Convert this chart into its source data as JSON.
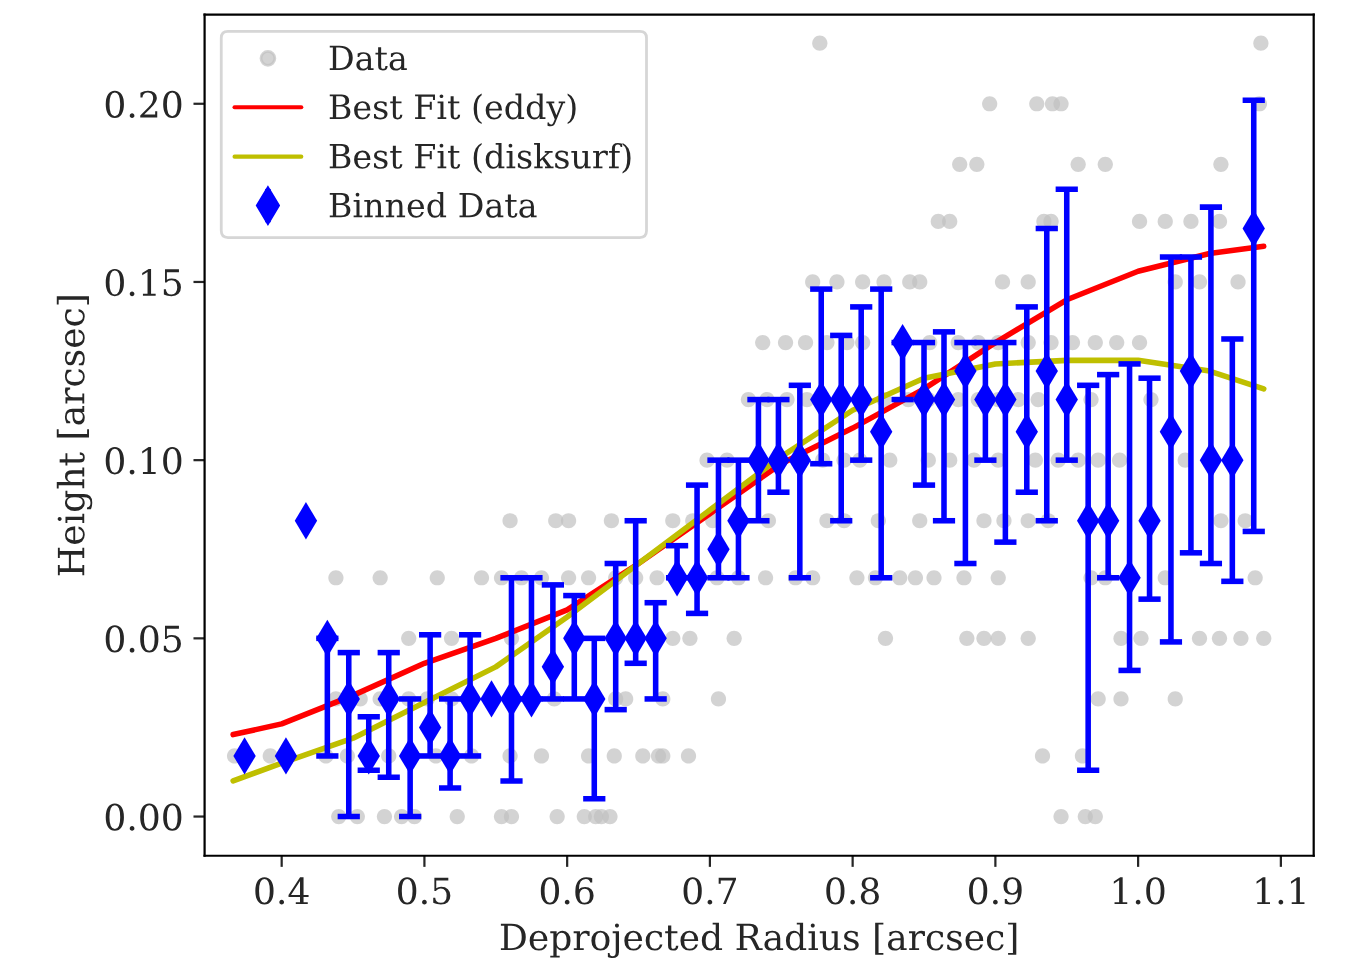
{
  "chart_data": {
    "type": "scatter",
    "xlabel": "Deprojected Radius [arcsec]",
    "ylabel": "Height [arcsec]",
    "xlim": [
      0.346,
      1.123
    ],
    "ylim": [
      -0.011,
      0.225
    ],
    "xticks": [
      0.4,
      0.5,
      0.6,
      0.7,
      0.8,
      0.9,
      {
        "value": 1.0,
        "label": "1.0"
      },
      1.1
    ],
    "yticks": [
      {
        "value": 0,
        "label": "0.00"
      },
      {
        "value": 0.05,
        "label": "0.05"
      },
      {
        "value": 0.1,
        "label": "0.10"
      },
      {
        "value": 0.15,
        "label": "0.15"
      },
      {
        "value": 0.2,
        "label": "0.20"
      }
    ],
    "grid": false,
    "legend": "top left",
    "series": [
      {
        "name": "Data",
        "marker": "circle",
        "color": "#c0c0c0",
        "x": [
          0.44,
          0.453,
          0.472,
          0.484,
          0.493,
          0.523,
          0.554,
          0.561,
          0.593,
          0.612,
          0.62,
          0.624,
          0.63,
          0.946,
          0.963,
          0.97,
          0.367,
          0.392,
          0.431,
          0.446,
          0.475,
          0.508,
          0.533,
          0.56,
          0.582,
          0.615,
          0.633,
          0.653,
          0.664,
          0.667,
          0.685,
          0.933,
          0.961,
          0.438,
          0.455,
          0.469,
          0.489,
          0.502,
          0.519,
          0.591,
          0.634,
          0.641,
          0.667,
          0.706,
          0.972,
          0.988,
          1.026,
          0.489,
          0.519,
          0.561,
          0.674,
          0.686,
          0.717,
          0.823,
          0.88,
          0.892,
          0.902,
          0.923,
          0.988,
          1.002,
          1.043,
          1.057,
          1.072,
          1.088,
          0.438,
          0.469,
          0.509,
          0.54,
          0.554,
          0.568,
          0.582,
          0.601,
          0.615,
          0.634,
          0.648,
          0.663,
          0.705,
          0.72,
          0.739,
          0.76,
          0.772,
          0.803,
          0.816,
          0.833,
          0.844,
          0.857,
          0.878,
          0.902,
          0.967,
          0.977,
          1.019,
          1.082,
          0.56,
          0.592,
          0.601,
          0.631,
          0.674,
          0.688,
          0.702,
          0.741,
          0.782,
          0.794,
          0.818,
          0.847,
          0.892,
          0.906,
          0.923,
          0.937,
          1.058,
          1.075,
          0.698,
          0.712,
          0.779,
          0.794,
          0.805,
          0.826,
          0.853,
          0.868,
          0.885,
          0.902,
          0.928,
          0.944,
          0.958,
          0.972,
          0.987,
          1.033,
          0.727,
          0.74,
          0.754,
          0.768,
          0.822,
          0.839,
          0.853,
          0.874,
          0.888,
          0.902,
          0.916,
          0.93,
          0.967,
          1.009,
          0.737,
          0.753,
          0.767,
          0.782,
          0.796,
          0.807,
          0.854,
          0.874,
          0.888,
          0.902,
          0.923,
          0.939,
          0.954,
          0.97,
          0.985,
          1.001,
          0.772,
          0.789,
          0.807,
          0.822,
          0.84,
          0.847,
          0.905,
          0.923,
          1.026,
          1.043,
          1.07,
          0.86,
          0.868,
          0.934,
          0.939,
          1.001,
          1.019,
          1.037,
          1.057,
          0.875,
          0.887,
          0.958,
          0.977,
          1.058,
          0.896,
          0.929,
          0.94,
          0.946,
          1.085,
          0.777,
          1.086
        ],
        "values": [
          0,
          0,
          0,
          0,
          0,
          0,
          0,
          0,
          0,
          0,
          0,
          0,
          0,
          0,
          0,
          0,
          0.017,
          0.017,
          0.017,
          0.017,
          0.017,
          0.017,
          0.017,
          0.017,
          0.017,
          0.017,
          0.017,
          0.017,
          0.017,
          0.017,
          0.017,
          0.017,
          0.017,
          0.033,
          0.033,
          0.033,
          0.033,
          0.033,
          0.033,
          0.033,
          0.033,
          0.033,
          0.033,
          0.033,
          0.033,
          0.033,
          0.033,
          0.05,
          0.05,
          0.05,
          0.05,
          0.05,
          0.05,
          0.05,
          0.05,
          0.05,
          0.05,
          0.05,
          0.05,
          0.05,
          0.05,
          0.05,
          0.05,
          0.05,
          0.067,
          0.067,
          0.067,
          0.067,
          0.067,
          0.067,
          0.067,
          0.067,
          0.067,
          0.067,
          0.067,
          0.067,
          0.067,
          0.067,
          0.067,
          0.067,
          0.067,
          0.067,
          0.067,
          0.067,
          0.067,
          0.067,
          0.067,
          0.067,
          0.067,
          0.067,
          0.067,
          0.067,
          0.083,
          0.083,
          0.083,
          0.083,
          0.083,
          0.083,
          0.083,
          0.083,
          0.083,
          0.083,
          0.083,
          0.083,
          0.083,
          0.083,
          0.083,
          0.083,
          0.083,
          0.083,
          0.1,
          0.1,
          0.1,
          0.1,
          0.1,
          0.1,
          0.1,
          0.1,
          0.1,
          0.1,
          0.1,
          0.1,
          0.1,
          0.1,
          0.1,
          0.1,
          0.117,
          0.117,
          0.117,
          0.117,
          0.117,
          0.117,
          0.117,
          0.117,
          0.117,
          0.117,
          0.117,
          0.117,
          0.117,
          0.117,
          0.133,
          0.133,
          0.133,
          0.133,
          0.133,
          0.133,
          0.133,
          0.133,
          0.133,
          0.133,
          0.133,
          0.133,
          0.133,
          0.133,
          0.133,
          0.133,
          0.15,
          0.15,
          0.15,
          0.15,
          0.15,
          0.15,
          0.15,
          0.15,
          0.15,
          0.15,
          0.15,
          0.167,
          0.167,
          0.167,
          0.167,
          0.167,
          0.167,
          0.167,
          0.167,
          0.183,
          0.183,
          0.183,
          0.183,
          0.183,
          0.2,
          0.2,
          0.2,
          0.2,
          0.2,
          0.217,
          0.217
        ]
      },
      {
        "name": "Best Fit (eddy)",
        "type": "line",
        "marker": "none",
        "line_style": "solid",
        "color": "#ff0000",
        "x": [
          0.366,
          0.4,
          0.45,
          0.5,
          0.55,
          0.6,
          0.65,
          0.7,
          0.75,
          0.8,
          0.85,
          0.9,
          0.95,
          1.0,
          1.05,
          1.088
        ],
        "values": [
          0.023,
          0.026,
          0.034,
          0.043,
          0.05,
          0.058,
          0.071,
          0.085,
          0.099,
          0.109,
          0.12,
          0.133,
          0.145,
          0.153,
          0.158,
          0.16
        ]
      },
      {
        "name": "Best Fit (disksurf)",
        "type": "line",
        "marker": "none",
        "line_style": "solid",
        "color": "#bfbf00",
        "x": [
          0.366,
          0.4,
          0.45,
          0.5,
          0.55,
          0.6,
          0.65,
          0.7,
          0.75,
          0.8,
          0.85,
          0.9,
          0.95,
          1.0,
          1.05,
          1.088
        ],
        "values": [
          0.01,
          0.015,
          0.022,
          0.032,
          0.042,
          0.056,
          0.071,
          0.086,
          0.101,
          0.114,
          0.123,
          0.127,
          0.128,
          0.128,
          0.125,
          0.12
        ]
      },
      {
        "name": "Binned Data",
        "marker": "diamond",
        "color": "#0000ff",
        "x": [
          0.374,
          0.403,
          0.417,
          0.432,
          0.447,
          0.461,
          0.475,
          0.49,
          0.504,
          0.518,
          0.532,
          0.547,
          0.561,
          0.575,
          0.59,
          0.605,
          0.619,
          0.634,
          0.648,
          0.662,
          0.677,
          0.691,
          0.706,
          0.72,
          0.734,
          0.748,
          0.763,
          0.778,
          0.792,
          0.806,
          0.82,
          0.835,
          0.85,
          0.864,
          0.879,
          0.893,
          0.907,
          0.922,
          0.936,
          0.95,
          0.965,
          0.979,
          0.994,
          1.008,
          1.023,
          1.037,
          1.051,
          1.066,
          1.081
        ],
        "values": [
          0.017,
          0.017,
          0.083,
          0.05,
          0.033,
          0.017,
          0.033,
          0.017,
          0.025,
          0.017,
          0.033,
          0.033,
          0.033,
          0.033,
          0.042,
          0.05,
          0.033,
          0.05,
          0.05,
          0.05,
          0.067,
          0.067,
          0.075,
          0.083,
          0.1,
          0.1,
          0.1,
          0.117,
          0.117,
          0.117,
          0.108,
          0.133,
          0.117,
          0.117,
          0.125,
          0.117,
          0.117,
          0.108,
          0.125,
          0.117,
          0.083,
          0.083,
          0.067,
          0.083,
          0.108,
          0.125,
          0.1,
          0.1,
          0.165
        ],
        "errors": [
          null,
          null,
          null,
          [
            0.017,
            0.05
          ],
          [
            0,
            0.046
          ],
          [
            0.013,
            0.028
          ],
          [
            0.011,
            0.046
          ],
          [
            0,
            0.033
          ],
          [
            0.017,
            0.051
          ],
          [
            0.008,
            0.033
          ],
          [
            0.017,
            0.051
          ],
          null,
          [
            0.01,
            0.067
          ],
          [
            0.033,
            0.067
          ],
          [
            0.033,
            0.065
          ],
          [
            0.033,
            0.062
          ],
          [
            0.005,
            0.05
          ],
          [
            0.03,
            0.071
          ],
          [
            0.043,
            0.083
          ],
          [
            0.033,
            0.06
          ],
          [
            0.067,
            0.076
          ],
          [
            0.057,
            0.093
          ],
          [
            0.067,
            0.1
          ],
          [
            0.067,
            0.1
          ],
          [
            0.083,
            0.117
          ],
          [
            0.091,
            0.117
          ],
          [
            0.067,
            0.121
          ],
          [
            0.099,
            0.148
          ],
          [
            0.083,
            0.135
          ],
          [
            0.1,
            0.143
          ],
          [
            0.067,
            0.148
          ],
          [
            0.117,
            0.133
          ],
          [
            0.093,
            0.133
          ],
          [
            0.083,
            0.136
          ],
          [
            0.071,
            0.133
          ],
          [
            0.1,
            0.133
          ],
          [
            0.077,
            0.133
          ],
          [
            0.091,
            0.143
          ],
          [
            0.083,
            0.165
          ],
          [
            0.1,
            0.176
          ],
          [
            0.013,
            0.121
          ],
          [
            0.067,
            0.124
          ],
          [
            0.041,
            0.127
          ],
          [
            0.061,
            0.123
          ],
          [
            0.049,
            0.157
          ],
          [
            0.074,
            0.157
          ],
          [
            0.071,
            0.171
          ],
          [
            0.066,
            0.134
          ],
          [
            0.08,
            0.201
          ]
        ]
      }
    ]
  }
}
